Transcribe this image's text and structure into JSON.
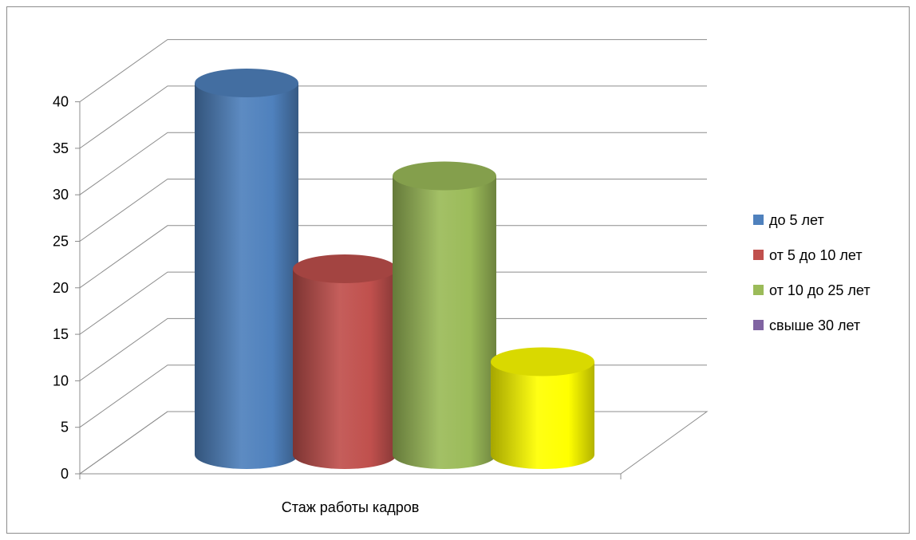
{
  "chart_data": {
    "type": "bar",
    "style": "3d-cylinder",
    "categories": [
      "Стаж работы кадров"
    ],
    "series": [
      {
        "name": "до 5 лет",
        "values": [
          40
        ],
        "color": "#4f81bd"
      },
      {
        "name": "от 5 до 10 лет",
        "values": [
          20
        ],
        "color": "#c0504d"
      },
      {
        "name": "от 10 до 25 лет",
        "values": [
          30
        ],
        "color": "#9bbb59"
      },
      {
        "name": "свыше 30 лет",
        "values": [
          10
        ],
        "color": "#ffff00",
        "legend_color": "#8064a2"
      }
    ],
    "xlabel": "",
    "ylabel": "",
    "ylim": [
      0,
      40
    ],
    "yticks": [
      0,
      5,
      10,
      15,
      20,
      25,
      30,
      35,
      40
    ],
    "grid": true,
    "legend_position": "right"
  }
}
